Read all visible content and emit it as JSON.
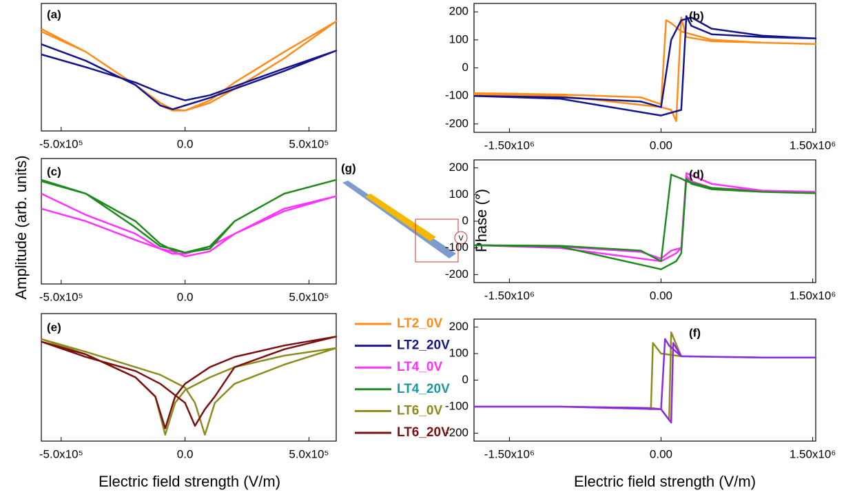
{
  "figure": {
    "amplitude_label": "Amplitude (arb. units)",
    "phase_label": "Phase (°)",
    "xlabel_left": "Electric field strength (V/m)",
    "xlabel_right": "Electric field strength (V/m)"
  },
  "diagram": {
    "label": "(g)",
    "meter": "V"
  },
  "chart_data": [
    {
      "type": "line",
      "panel_label": "(a)",
      "xlim": [
        -580000,
        610000
      ],
      "ylim": [
        0,
        1
      ],
      "xticks": [
        {
          "value": -500000,
          "label": "-5.0x10⁵"
        },
        {
          "value": 0,
          "label": "0.0"
        },
        {
          "value": 500000,
          "label": "5.0x10⁵"
        }
      ],
      "series": [
        {
          "name": "LT2_0V",
          "color": "#ff8c1a",
          "x": [
            -580000,
            -400000,
            -200000,
            -100000,
            -50000,
            0,
            100000,
            200000,
            400000,
            610000,
            400000,
            200000,
            100000,
            0,
            -50000,
            -100000,
            -200000,
            -400000,
            -580000
          ],
          "values": [
            0.8,
            0.62,
            0.36,
            0.22,
            0.17,
            0.16,
            0.24,
            0.38,
            0.62,
            0.86,
            0.57,
            0.33,
            0.22,
            0.16,
            0.16,
            0.2,
            0.36,
            0.62,
            0.78
          ]
        },
        {
          "name": "LT2_20V",
          "color": "#14148c",
          "x": [
            -580000,
            -400000,
            -200000,
            -100000,
            -50000,
            0,
            100000,
            200000,
            400000,
            610000,
            400000,
            200000,
            100000,
            0,
            -50000,
            -100000,
            -200000,
            -400000,
            -580000
          ],
          "values": [
            0.68,
            0.55,
            0.36,
            0.2,
            0.17,
            0.2,
            0.26,
            0.33,
            0.47,
            0.63,
            0.49,
            0.35,
            0.28,
            0.24,
            0.27,
            0.3,
            0.38,
            0.5,
            0.6
          ]
        }
      ]
    },
    {
      "type": "line",
      "panel_label": "(b)",
      "xlim": [
        -1850000,
        1530000
      ],
      "ylim": [
        -230,
        230
      ],
      "xticks": [
        {
          "value": -1500000,
          "label": "-1.50x10⁶"
        },
        {
          "value": 0,
          "label": "0.00"
        },
        {
          "value": 1500000,
          "label": "1.50x10⁶"
        }
      ],
      "yticks": [
        -200,
        -100,
        0,
        100,
        200
      ],
      "series": [
        {
          "color": "#ff8c1a",
          "x": [
            -1850000,
            -1000000,
            -200000,
            0,
            50000,
            100000,
            200000,
            500000,
            1000000,
            1530000,
            1000000,
            500000,
            250000,
            200000,
            150000,
            100000,
            0,
            -1000000,
            -1850000
          ],
          "values": [
            -90,
            -95,
            -105,
            -130,
            170,
            160,
            130,
            100,
            90,
            85,
            90,
            95,
            110,
            180,
            -190,
            -150,
            -140,
            -100,
            -95
          ]
        },
        {
          "color": "#14148c",
          "x": [
            -1850000,
            -1000000,
            -200000,
            0,
            100000,
            200000,
            300000,
            500000,
            1000000,
            1530000,
            1000000,
            500000,
            300000,
            250000,
            200000,
            100000,
            0,
            -1000000,
            -1850000
          ],
          "values": [
            -100,
            -105,
            -120,
            -140,
            100,
            170,
            180,
            140,
            115,
            105,
            110,
            120,
            150,
            185,
            -150,
            -160,
            -170,
            -110,
            -100
          ]
        }
      ]
    },
    {
      "type": "line",
      "panel_label": "(c)",
      "xlim": [
        -580000,
        610000
      ],
      "ylim": [
        0,
        1
      ],
      "xticks": [
        {
          "value": -500000,
          "label": "-5.0x10⁵"
        },
        {
          "value": 0,
          "label": "0.0"
        },
        {
          "value": 500000,
          "label": "5.0x10⁵"
        }
      ],
      "series": [
        {
          "name": "LT4_0V",
          "color": "#ff33ff",
          "x": [
            -580000,
            -400000,
            -200000,
            -100000,
            -50000,
            0,
            100000,
            200000,
            400000,
            610000,
            400000,
            200000,
            100000,
            0,
            -50000,
            -100000,
            -200000,
            -400000,
            -580000
          ],
          "values": [
            0.6,
            0.5,
            0.35,
            0.28,
            0.26,
            0.22,
            0.26,
            0.4,
            0.6,
            0.7,
            0.58,
            0.4,
            0.3,
            0.24,
            0.24,
            0.28,
            0.4,
            0.55,
            0.72
          ]
        },
        {
          "name": "LT4_20V",
          "color": "#1e8a1e",
          "label_color": "#1a9a9a",
          "x": [
            -580000,
            -400000,
            -200000,
            -100000,
            -50000,
            0,
            100000,
            200000,
            400000,
            610000,
            400000,
            200000,
            100000,
            0,
            -50000,
            -100000,
            -200000,
            -400000,
            -580000
          ],
          "values": [
            0.82,
            0.72,
            0.45,
            0.3,
            0.28,
            0.25,
            0.28,
            0.5,
            0.72,
            0.83,
            0.72,
            0.5,
            0.3,
            0.25,
            0.27,
            0.32,
            0.5,
            0.72,
            0.83
          ]
        }
      ]
    },
    {
      "type": "line",
      "panel_label": "(d)",
      "xlim": [
        -1850000,
        1530000
      ],
      "ylim": [
        -230,
        230
      ],
      "xticks": [
        {
          "value": -1500000,
          "label": "-1.50x10⁶"
        },
        {
          "value": 0,
          "label": "0.00"
        },
        {
          "value": 1500000,
          "label": "1.50x10⁶"
        }
      ],
      "yticks": [
        -200,
        -100,
        0,
        100,
        200
      ],
      "series": [
        {
          "color": "#ff33ff",
          "x": [
            -1850000,
            -1000000,
            -200000,
            0,
            100000,
            200000,
            250000,
            500000,
            1000000,
            1530000,
            1000000,
            500000,
            300000,
            250000,
            200000,
            150000,
            0,
            -1000000,
            -1850000
          ],
          "values": [
            -90,
            -95,
            -115,
            -140,
            -110,
            -100,
            180,
            140,
            115,
            110,
            115,
            125,
            150,
            170,
            -100,
            -120,
            -150,
            -100,
            -90
          ]
        },
        {
          "color": "#1e8a1e",
          "x": [
            -1850000,
            -1000000,
            -200000,
            0,
            100000,
            200000,
            250000,
            500000,
            1000000,
            1530000,
            1000000,
            500000,
            300000,
            250000,
            200000,
            150000,
            0,
            -1000000,
            -1850000
          ],
          "values": [
            -90,
            -92,
            -110,
            -150,
            175,
            160,
            150,
            125,
            110,
            105,
            110,
            120,
            140,
            160,
            -120,
            -150,
            -180,
            -95,
            -90
          ]
        }
      ]
    },
    {
      "type": "line",
      "panel_label": "(e)",
      "xlim": [
        -580000,
        610000
      ],
      "ylim": [
        0,
        1
      ],
      "xticks": [
        {
          "value": -500000,
          "label": "-5.0x10⁵"
        },
        {
          "value": 0,
          "label": "0.0"
        },
        {
          "value": 500000,
          "label": "5.0x10⁵"
        }
      ],
      "series": [
        {
          "name": "LT6_0V",
          "color": "#8c8c1e",
          "x": [
            -580000,
            -400000,
            -200000,
            -120000,
            -80000,
            -40000,
            0,
            100000,
            200000,
            400000,
            610000,
            400000,
            200000,
            120000,
            80000,
            40000,
            0,
            -100000,
            -200000,
            -400000,
            -580000
          ],
          "values": [
            0.8,
            0.68,
            0.5,
            0.35,
            0.05,
            0.3,
            0.4,
            0.5,
            0.58,
            0.67,
            0.73,
            0.6,
            0.45,
            0.3,
            0.05,
            0.3,
            0.42,
            0.52,
            0.58,
            0.7,
            0.8
          ]
        },
        {
          "name": "LT6_20V",
          "color": "#7a1010",
          "x": [
            -580000,
            -400000,
            -200000,
            -120000,
            -80000,
            -40000,
            0,
            100000,
            200000,
            400000,
            610000,
            400000,
            200000,
            120000,
            80000,
            40000,
            0,
            -100000,
            -200000,
            -400000,
            -580000
          ],
          "values": [
            0.78,
            0.68,
            0.5,
            0.35,
            0.1,
            0.35,
            0.45,
            0.58,
            0.66,
            0.75,
            0.82,
            0.72,
            0.58,
            0.35,
            0.25,
            0.12,
            0.3,
            0.45,
            0.55,
            0.66,
            0.78
          ]
        }
      ]
    },
    {
      "type": "line",
      "panel_label": "(f)",
      "xlim": [
        -1850000,
        1530000
      ],
      "ylim": [
        -230,
        230
      ],
      "xticks": [
        {
          "value": -1500000,
          "label": "-1.50x10⁶"
        },
        {
          "value": 0,
          "label": "0.00"
        },
        {
          "value": 1500000,
          "label": "1.50x10⁶"
        }
      ],
      "yticks": [
        -200,
        -100,
        0,
        100,
        200
      ],
      "series": [
        {
          "color": "#8c8c1e",
          "x": [
            -1850000,
            -1000000,
            -200000,
            -100000,
            -80000,
            0,
            200000,
            1000000,
            1530000,
            1000000,
            200000,
            100000,
            80000,
            0,
            -100000,
            -1000000,
            -1850000
          ],
          "values": [
            -100,
            -100,
            -105,
            -110,
            140,
            100,
            90,
            85,
            85,
            85,
            90,
            180,
            -150,
            -110,
            -105,
            -100,
            -100
          ]
        },
        {
          "color": "#8a2be2",
          "x": [
            -1850000,
            -1000000,
            -200000,
            0,
            40000,
            80000,
            200000,
            1000000,
            1530000,
            1000000,
            200000,
            120000,
            100000,
            0,
            -1000000,
            -1850000
          ],
          "values": [
            -100,
            -100,
            -105,
            -110,
            155,
            130,
            90,
            85,
            85,
            85,
            90,
            140,
            -160,
            -110,
            -100,
            -100
          ]
        }
      ]
    }
  ]
}
